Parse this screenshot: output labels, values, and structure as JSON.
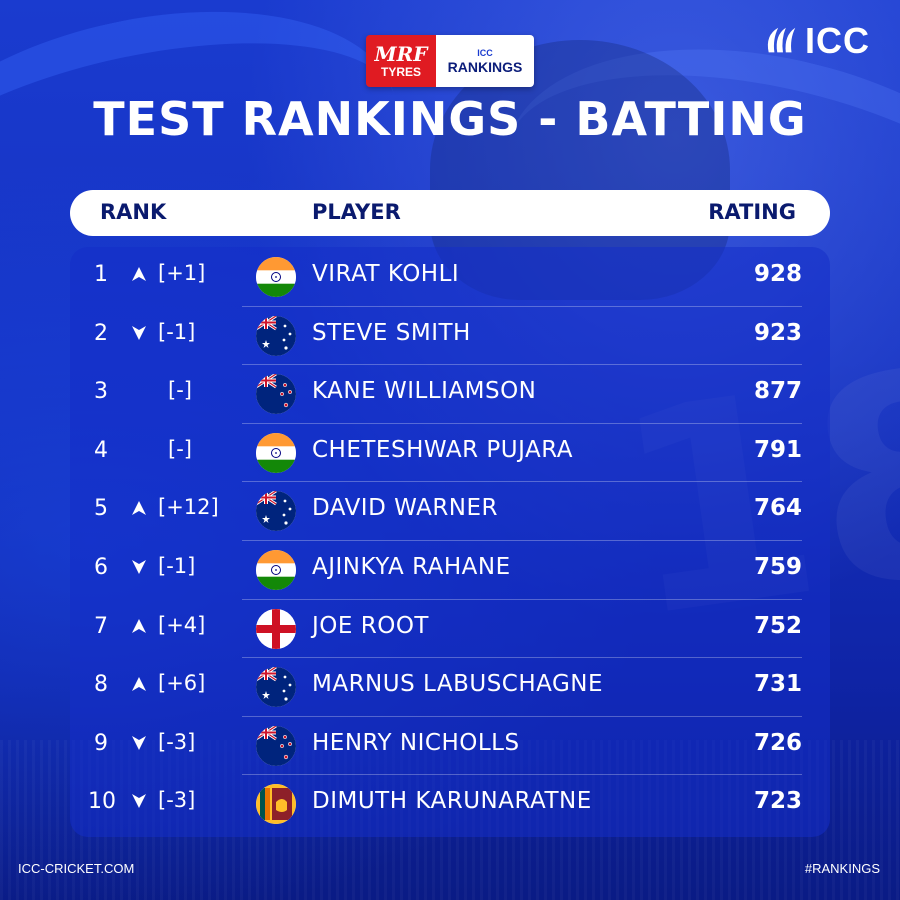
{
  "sponsor": {
    "mrf": "MRF",
    "tyres": "TYRES",
    "icc_small": "ICC",
    "rankings": "RANKINGS"
  },
  "brand": {
    "logo_text": "ICC"
  },
  "title": "TEST RANKINGS - BATTING",
  "columns": {
    "rank": "RANK",
    "player": "PLAYER",
    "rating": "RATING"
  },
  "rows": [
    {
      "rank": "1",
      "movement": "up",
      "change": "[+1]",
      "country": "India",
      "flag_icon": "india-flag-icon",
      "player": "VIRAT KOHLI",
      "rating": "928"
    },
    {
      "rank": "2",
      "movement": "down",
      "change": "[-1]",
      "country": "Australia",
      "flag_icon": "australia-flag-icon",
      "player": "STEVE SMITH",
      "rating": "923"
    },
    {
      "rank": "3",
      "movement": "same",
      "change": "[-]",
      "country": "New Zealand",
      "flag_icon": "new-zealand-flag-icon",
      "player": "KANE WILLIAMSON",
      "rating": "877"
    },
    {
      "rank": "4",
      "movement": "same",
      "change": "[-]",
      "country": "India",
      "flag_icon": "india-flag-icon",
      "player": "CHETESHWAR PUJARA",
      "rating": "791"
    },
    {
      "rank": "5",
      "movement": "up",
      "change": "[+12]",
      "country": "Australia",
      "flag_icon": "australia-flag-icon",
      "player": "DAVID WARNER",
      "rating": "764"
    },
    {
      "rank": "6",
      "movement": "down",
      "change": "[-1]",
      "country": "India",
      "flag_icon": "india-flag-icon",
      "player": "AJINKYA RAHANE",
      "rating": "759"
    },
    {
      "rank": "7",
      "movement": "up",
      "change": "[+4]",
      "country": "England",
      "flag_icon": "england-flag-icon",
      "player": "JOE ROOT",
      "rating": "752"
    },
    {
      "rank": "8",
      "movement": "up",
      "change": "[+6]",
      "country": "Australia",
      "flag_icon": "australia-flag-icon",
      "player": "MARNUS LABUSCHAGNE",
      "rating": "731"
    },
    {
      "rank": "9",
      "movement": "down",
      "change": "[-3]",
      "country": "New Zealand",
      "flag_icon": "new-zealand-flag-icon",
      "player": "HENRY NICHOLLS",
      "rating": "726"
    },
    {
      "rank": "10",
      "movement": "down",
      "change": "[-3]",
      "country": "Sri Lanka",
      "flag_icon": "sri-lanka-flag-icon",
      "player": "DIMUTH KARUNARATNE",
      "rating": "723"
    }
  ],
  "footer": {
    "website": "ICC-CRICKET.COM",
    "hashtag": "#RANKINGS"
  },
  "colors": {
    "background": "#1532c2",
    "panel": "#1a3bcf",
    "header_text": "#0a1a6e",
    "mrf_red": "#e01b22"
  }
}
